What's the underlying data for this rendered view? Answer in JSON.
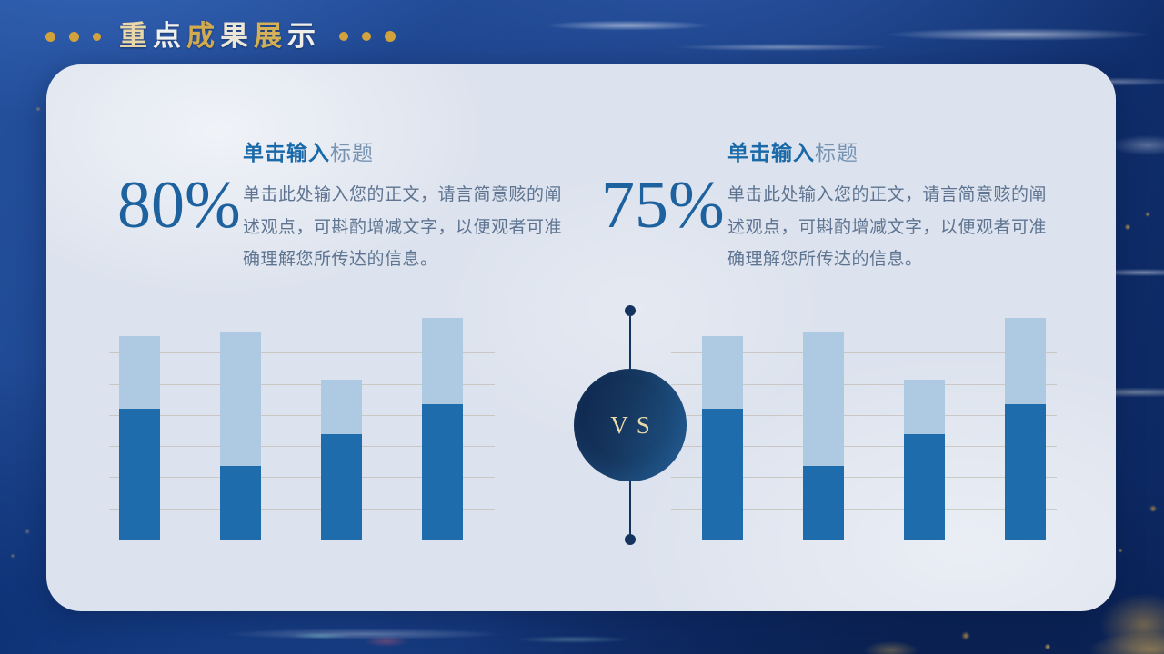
{
  "colors": {
    "gold_accent": "#d2a23c",
    "card_background": "#dde3ee",
    "bar_dark": "#1e6cab",
    "bar_light": "#aec9e2",
    "percent_blue": "#1d619e",
    "heading_blue": "#1a69a8",
    "heading_light_blue": "#7693b2",
    "body_text": "#5e7491",
    "navy_circle": "#14335f",
    "vs_text_gold": "#ead9a8",
    "background_blue": "#123273"
  },
  "header": {
    "title": "重点成果展示",
    "title_chars": [
      {
        "ch": "重",
        "color": "#e9d7aa"
      },
      {
        "ch": "点",
        "color": "#f1f2ef"
      },
      {
        "ch": "成",
        "color": "#d2ab50"
      },
      {
        "ch": "果",
        "color": "#ece7d8"
      },
      {
        "ch": "展",
        "color": "#d4b056"
      },
      {
        "ch": "示",
        "color": "#f0efe9"
      }
    ]
  },
  "panels": [
    {
      "percent": "80%",
      "heading_strong": "单击输入",
      "heading_light": "标题",
      "body": "单击此处输入您的正文，请言简意赅的阐述观点，可斟酌增减文字，以便观者可准确理解您所传达的信息。"
    },
    {
      "percent": "75%",
      "heading_strong": "单击输入",
      "heading_light": "标题",
      "body": "单击此处输入您的正文，请言简意赅的阐述观点，可斟酌增减文字，以便观者可准确理解您所传达的信息。"
    }
  ],
  "vs": {
    "label": "VS"
  },
  "chart_data": [
    {
      "type": "bar",
      "stacked": true,
      "title": "",
      "categories": [
        "",
        "",
        "",
        ""
      ],
      "series": [
        {
          "name": "primary",
          "color": "#1e6cab",
          "values": [
            58,
            33,
            47,
            60
          ]
        },
        {
          "name": "secondary",
          "color": "#aec9e2",
          "values": [
            32,
            59,
            24,
            38
          ]
        }
      ],
      "totals": [
        90,
        92,
        71,
        98
      ],
      "ylim": [
        0,
        100
      ],
      "grid": true,
      "gridline_count": 8,
      "legend": false,
      "xlabel": "",
      "ylabel": ""
    },
    {
      "type": "bar",
      "stacked": true,
      "title": "",
      "categories": [
        "",
        "",
        "",
        ""
      ],
      "series": [
        {
          "name": "primary",
          "color": "#1e6cab",
          "values": [
            58,
            33,
            47,
            60
          ]
        },
        {
          "name": "secondary",
          "color": "#aec9e2",
          "values": [
            32,
            59,
            24,
            38
          ]
        }
      ],
      "totals": [
        90,
        92,
        71,
        98
      ],
      "ylim": [
        0,
        100
      ],
      "grid": true,
      "gridline_count": 8,
      "legend": false,
      "xlabel": "",
      "ylabel": ""
    }
  ]
}
